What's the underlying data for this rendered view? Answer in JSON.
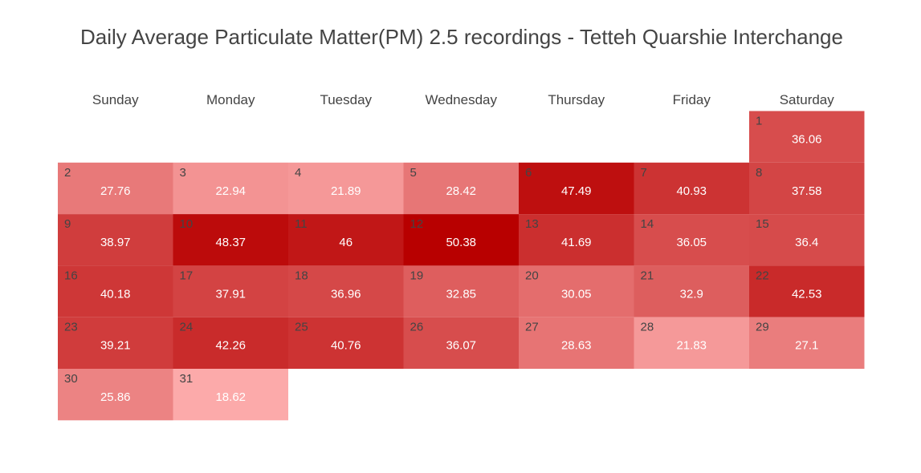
{
  "title": "Daily Average Particulate Matter(PM) 2.5 recordings - Tetteh Quarshie Interchange",
  "chart_data": {
    "type": "heatmap",
    "title": "Daily Average Particulate Matter(PM) 2.5 recordings - Tetteh Quarshie Interchange",
    "layout": "calendar",
    "weekdays": [
      "Sunday",
      "Monday",
      "Tuesday",
      "Wednesday",
      "Thursday",
      "Friday",
      "Saturday"
    ],
    "first_day_weekday_index": 6,
    "days": [
      1,
      2,
      3,
      4,
      5,
      6,
      7,
      8,
      9,
      10,
      11,
      12,
      13,
      14,
      15,
      16,
      17,
      18,
      19,
      20,
      21,
      22,
      23,
      24,
      25,
      26,
      27,
      28,
      29,
      30,
      31
    ],
    "values": [
      "36.06",
      "27.76",
      "22.94",
      "21.89",
      "28.42",
      "47.49",
      "40.93",
      "37.58",
      "38.97",
      "48.37",
      "46",
      "50.38",
      "41.69",
      "36.05",
      "36.4",
      "40.18",
      "37.91",
      "36.96",
      "32.85",
      "30.05",
      "32.9",
      "42.53",
      "39.21",
      "42.26",
      "40.76",
      "36.07",
      "28.63",
      "21.83",
      "27.1",
      "25.86",
      "18.62"
    ],
    "color_scale": {
      "low": "#fcaaaa",
      "high": "#b80000"
    }
  }
}
